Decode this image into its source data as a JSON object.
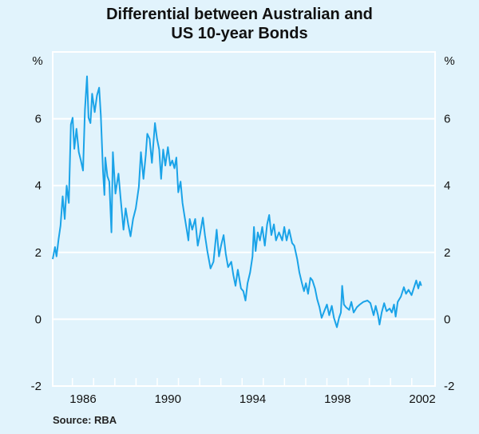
{
  "chart_data": {
    "type": "line",
    "title": [
      "Differential between Australian and",
      "US 10-year Bonds"
    ],
    "xlabel": "",
    "ylabel_left": "%",
    "ylabel_right": "%",
    "ylim": [
      -2,
      8
    ],
    "xlim": [
      1985.07,
      2003.1
    ],
    "yticks": [
      "-2",
      "0",
      "2",
      "4",
      "6"
    ],
    "ytick_values": [
      -2,
      0,
      2,
      4,
      6
    ],
    "xtick_labels": [
      "1986",
      "1990",
      "1994",
      "1998",
      "2002"
    ],
    "xtick_label_positions": [
      1986.5,
      1990.5,
      1994.5,
      1998.5,
      2002.5
    ],
    "minor_ticks_years": [
      1986,
      1987,
      1988,
      1989,
      1990,
      1991,
      1992,
      1993,
      1994,
      1995,
      1996,
      1997,
      1998,
      1999,
      2000,
      2001,
      2002
    ],
    "grid": true,
    "source": "Source: RBA",
    "colors": {
      "background": "#e1f3fc",
      "line": "#1aa3e8",
      "grid": "#ffffff"
    },
    "series": [
      {
        "name": "Differential",
        "points": [
          [
            1985.07,
            1.8
          ],
          [
            1985.18,
            2.16
          ],
          [
            1985.25,
            1.88
          ],
          [
            1985.35,
            2.4
          ],
          [
            1985.44,
            2.8
          ],
          [
            1985.54,
            3.68
          ],
          [
            1985.64,
            3.0
          ],
          [
            1985.73,
            4.0
          ],
          [
            1985.83,
            3.48
          ],
          [
            1985.93,
            5.83
          ],
          [
            1986.01,
            6.03
          ],
          [
            1986.09,
            5.1
          ],
          [
            1986.19,
            5.7
          ],
          [
            1986.3,
            5.0
          ],
          [
            1986.4,
            4.75
          ],
          [
            1986.5,
            4.45
          ],
          [
            1986.59,
            6.27
          ],
          [
            1986.69,
            7.27
          ],
          [
            1986.76,
            6.03
          ],
          [
            1986.85,
            5.87
          ],
          [
            1986.93,
            6.75
          ],
          [
            1987.05,
            6.2
          ],
          [
            1987.16,
            6.7
          ],
          [
            1987.26,
            6.93
          ],
          [
            1987.34,
            6.1
          ],
          [
            1987.44,
            4.44
          ],
          [
            1987.51,
            3.72
          ],
          [
            1987.55,
            4.84
          ],
          [
            1987.65,
            4.28
          ],
          [
            1987.74,
            4.12
          ],
          [
            1987.84,
            2.6
          ],
          [
            1987.91,
            5.0
          ],
          [
            1988.03,
            3.76
          ],
          [
            1988.17,
            4.36
          ],
          [
            1988.27,
            3.64
          ],
          [
            1988.41,
            2.68
          ],
          [
            1988.51,
            3.32
          ],
          [
            1988.63,
            2.84
          ],
          [
            1988.74,
            2.48
          ],
          [
            1988.86,
            3.0
          ],
          [
            1988.99,
            3.32
          ],
          [
            1989.13,
            3.96
          ],
          [
            1989.23,
            5.0
          ],
          [
            1989.35,
            4.2
          ],
          [
            1989.46,
            4.92
          ],
          [
            1989.53,
            5.55
          ],
          [
            1989.64,
            5.4
          ],
          [
            1989.75,
            4.68
          ],
          [
            1989.89,
            5.87
          ],
          [
            1989.99,
            5.4
          ],
          [
            1990.09,
            5.08
          ],
          [
            1990.18,
            4.2
          ],
          [
            1990.28,
            5.08
          ],
          [
            1990.38,
            4.6
          ],
          [
            1990.5,
            5.15
          ],
          [
            1990.61,
            4.6
          ],
          [
            1990.71,
            4.75
          ],
          [
            1990.81,
            4.52
          ],
          [
            1990.9,
            4.84
          ],
          [
            1990.99,
            3.8
          ],
          [
            1991.1,
            4.12
          ],
          [
            1991.19,
            3.48
          ],
          [
            1991.29,
            3.08
          ],
          [
            1991.39,
            2.68
          ],
          [
            1991.47,
            2.36
          ],
          [
            1991.53,
            3.0
          ],
          [
            1991.65,
            2.68
          ],
          [
            1991.79,
            3.0
          ],
          [
            1991.91,
            2.2
          ],
          [
            1992.01,
            2.52
          ],
          [
            1992.15,
            3.04
          ],
          [
            1992.25,
            2.52
          ],
          [
            1992.36,
            2.04
          ],
          [
            1992.51,
            1.52
          ],
          [
            1992.65,
            1.72
          ],
          [
            1992.8,
            2.68
          ],
          [
            1992.91,
            1.88
          ],
          [
            1993.01,
            2.2
          ],
          [
            1993.13,
            2.52
          ],
          [
            1993.23,
            1.96
          ],
          [
            1993.34,
            1.56
          ],
          [
            1993.49,
            1.72
          ],
          [
            1993.59,
            1.32
          ],
          [
            1993.69,
            1.0
          ],
          [
            1993.8,
            1.48
          ],
          [
            1993.95,
            0.92
          ],
          [
            1994.06,
            0.84
          ],
          [
            1994.16,
            0.56
          ],
          [
            1994.26,
            1.08
          ],
          [
            1994.38,
            1.4
          ],
          [
            1994.49,
            1.88
          ],
          [
            1994.56,
            2.76
          ],
          [
            1994.64,
            2.04
          ],
          [
            1994.74,
            2.6
          ],
          [
            1994.84,
            2.36
          ],
          [
            1994.95,
            2.76
          ],
          [
            1995.07,
            2.2
          ],
          [
            1995.18,
            2.84
          ],
          [
            1995.28,
            3.12
          ],
          [
            1995.38,
            2.52
          ],
          [
            1995.5,
            2.84
          ],
          [
            1995.6,
            2.36
          ],
          [
            1995.74,
            2.6
          ],
          [
            1995.89,
            2.36
          ],
          [
            1995.99,
            2.76
          ],
          [
            1996.1,
            2.36
          ],
          [
            1996.22,
            2.68
          ],
          [
            1996.36,
            2.28
          ],
          [
            1996.46,
            2.2
          ],
          [
            1996.6,
            1.8
          ],
          [
            1996.7,
            1.4
          ],
          [
            1996.82,
            1.08
          ],
          [
            1996.92,
            0.84
          ],
          [
            1997.01,
            1.08
          ],
          [
            1997.11,
            0.76
          ],
          [
            1997.22,
            1.24
          ],
          [
            1997.32,
            1.16
          ],
          [
            1997.44,
            0.92
          ],
          [
            1997.54,
            0.6
          ],
          [
            1997.65,
            0.36
          ],
          [
            1997.75,
            0.04
          ],
          [
            1997.85,
            0.2
          ],
          [
            1998.0,
            0.44
          ],
          [
            1998.11,
            0.12
          ],
          [
            1998.23,
            0.4
          ],
          [
            1998.33,
            0.04
          ],
          [
            1998.47,
            -0.24
          ],
          [
            1998.57,
            0.04
          ],
          [
            1998.66,
            0.2
          ],
          [
            1998.72,
            1.0
          ],
          [
            1998.8,
            0.44
          ],
          [
            1998.9,
            0.36
          ],
          [
            1999.05,
            0.28
          ],
          [
            1999.15,
            0.52
          ],
          [
            1999.26,
            0.2
          ],
          [
            1999.41,
            0.36
          ],
          [
            1999.55,
            0.44
          ],
          [
            1999.72,
            0.52
          ],
          [
            1999.91,
            0.56
          ],
          [
            2000.05,
            0.48
          ],
          [
            2000.2,
            0.12
          ],
          [
            2000.3,
            0.4
          ],
          [
            2000.41,
            0.12
          ],
          [
            2000.48,
            -0.16
          ],
          [
            2000.58,
            0.2
          ],
          [
            2000.7,
            0.48
          ],
          [
            2000.81,
            0.24
          ],
          [
            2000.96,
            0.32
          ],
          [
            2001.06,
            0.2
          ],
          [
            2001.16,
            0.44
          ],
          [
            2001.24,
            0.08
          ],
          [
            2001.34,
            0.52
          ],
          [
            2001.49,
            0.68
          ],
          [
            2001.63,
            0.96
          ],
          [
            2001.73,
            0.76
          ],
          [
            2001.85,
            0.88
          ],
          [
            2001.99,
            0.72
          ],
          [
            2002.11,
            0.96
          ],
          [
            2002.21,
            1.16
          ],
          [
            2002.31,
            0.92
          ],
          [
            2002.39,
            1.12
          ],
          [
            2002.45,
            1.0
          ]
        ]
      }
    ]
  }
}
